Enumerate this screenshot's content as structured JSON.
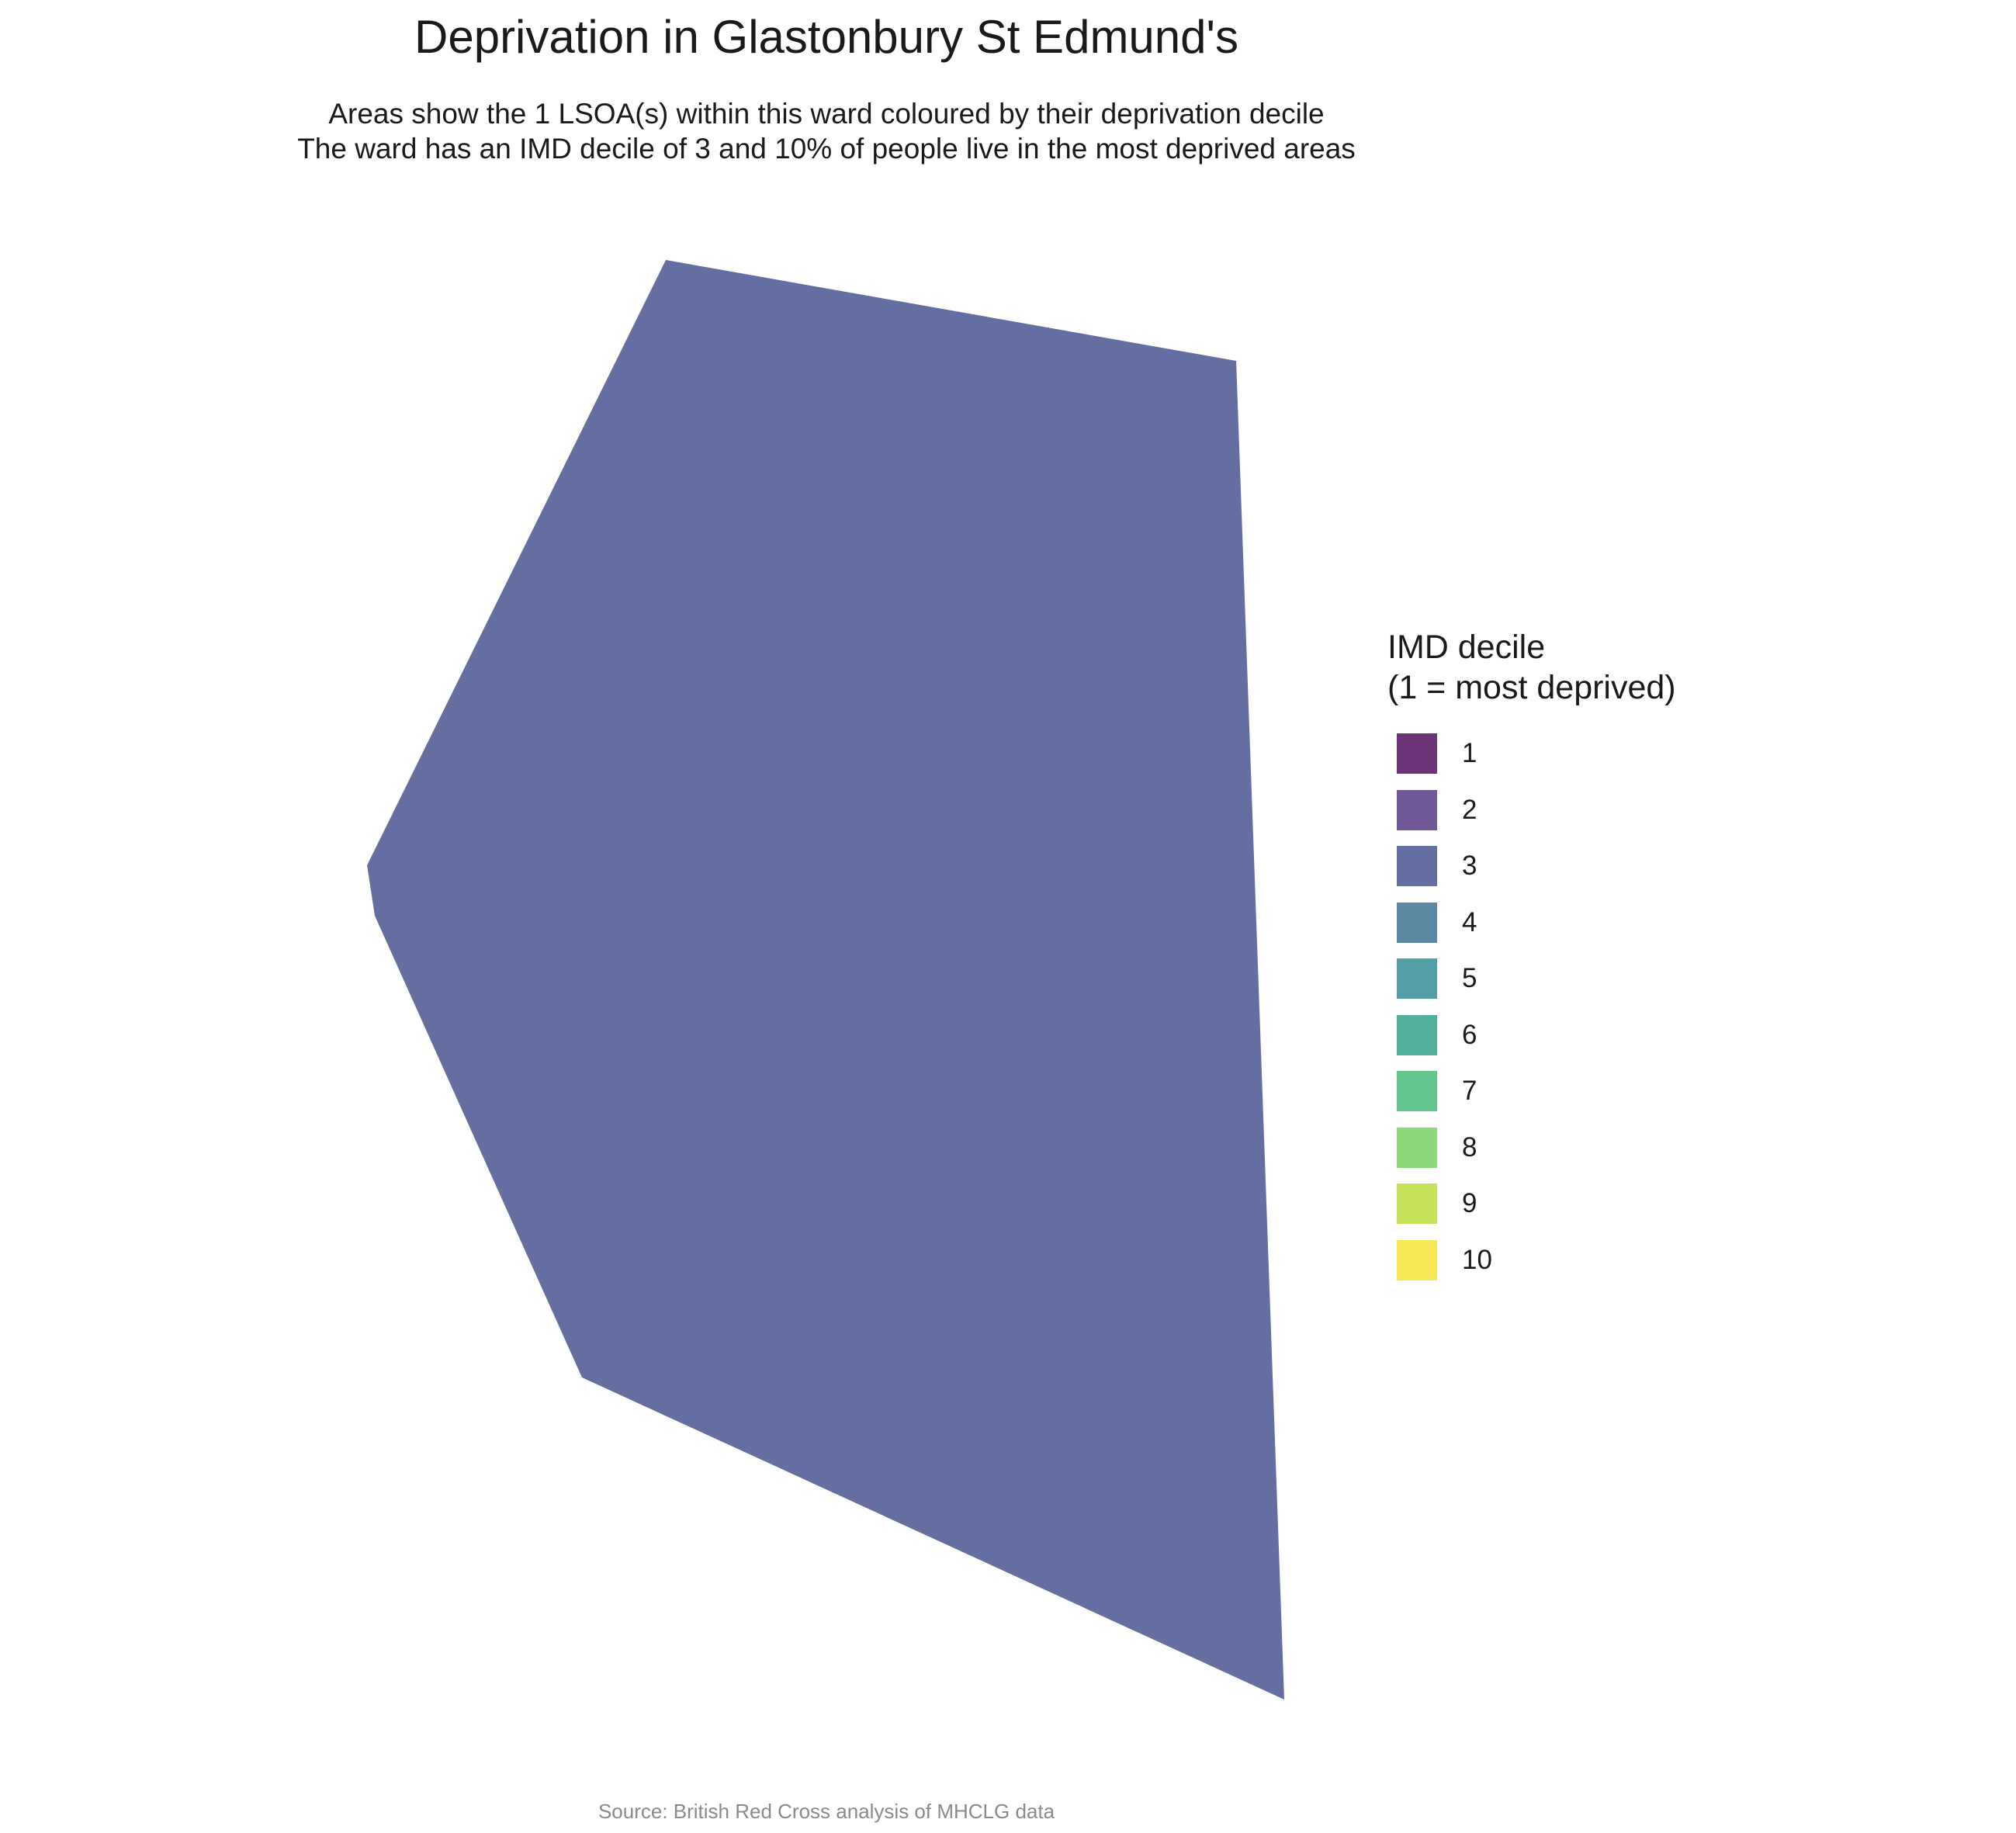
{
  "title": "Deprivation in Glastonbury St Edmund's",
  "subtitle_line1": "Areas show the 1 LSOA(s) within this ward coloured by their deprivation decile",
  "subtitle_line2": "The ward has an IMD decile of 3 and 10% of people live in the most deprived areas",
  "caption": "Source: British Red Cross analysis of MHCLG data",
  "map": {
    "areas": [
      {
        "decile": 3,
        "color": "#656EA0"
      }
    ]
  },
  "legend": {
    "title_line1": "IMD decile",
    "title_line2": "(1 = most deprived)",
    "items": [
      {
        "label": "1",
        "color": "#6B3578"
      },
      {
        "label": "2",
        "color": "#705796"
      },
      {
        "label": "3",
        "color": "#656EA0"
      },
      {
        "label": "4",
        "color": "#5B87A3"
      },
      {
        "label": "5",
        "color": "#539DA4"
      },
      {
        "label": "6",
        "color": "#51B19D"
      },
      {
        "label": "7",
        "color": "#63C68E"
      },
      {
        "label": "8",
        "color": "#8DD77A"
      },
      {
        "label": "9",
        "color": "#C6E35B"
      },
      {
        "label": "10",
        "color": "#F8E755"
      }
    ]
  }
}
